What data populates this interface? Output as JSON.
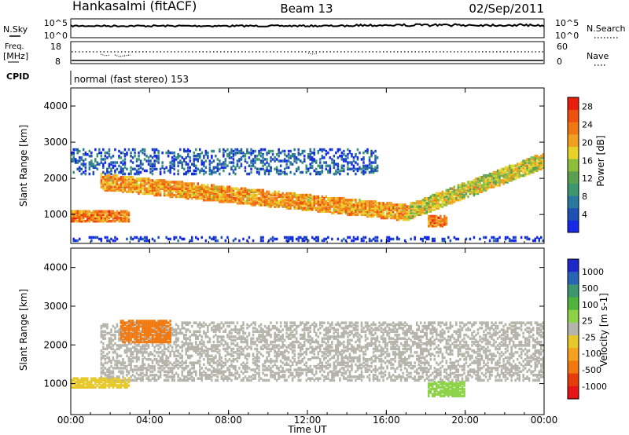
{
  "header": {
    "station": "Hankasalmi (fitACF)",
    "beam": "Beam 13",
    "date": "02/Sep/2011"
  },
  "noise_panel": {
    "left_label": "N.Sky",
    "right_label": "N.Search",
    "left_ticks": [
      "10^5",
      "10^0"
    ],
    "right_ticks": [
      "10^5",
      "10^0"
    ]
  },
  "freq_panel": {
    "left_label_line1": "Freq.",
    "left_label_line2": "[MHz]",
    "right_label": "Nave",
    "left_ticks": [
      "18",
      "8"
    ],
    "right_ticks": [
      "60",
      "0"
    ]
  },
  "cpid": {
    "label": "CPID",
    "text": "normal (fast stereo) 153"
  },
  "x_axis": {
    "label": "Time UT",
    "ticks": [
      "00:00",
      "04:00",
      "08:00",
      "12:00",
      "16:00",
      "20:00",
      "00:00"
    ]
  },
  "colors": {
    "power": [
      "#1428e6",
      "#1e50b4",
      "#2878a0",
      "#3c966e",
      "#5aa050",
      "#8cbe3c",
      "#e6d228",
      "#f0a01e",
      "#f07814",
      "#f0500f",
      "#e61e0a"
    ],
    "velocity": [
      "#1e28c8",
      "#2864b4",
      "#3c966e",
      "#50b43c",
      "#8cd246",
      "#b4b4aa",
      "#e6c828",
      "#f5a01e",
      "#f0780f",
      "#e63c0a",
      "#e61414"
    ]
  },
  "chart_data": [
    {
      "type": "heatmap",
      "title": "",
      "xlabel": "Time UT",
      "ylabel": "Slant Range [km]",
      "xlim": [
        "00:00",
        "24:00"
      ],
      "ylim": [
        200,
        4500
      ],
      "yticks": [
        1000,
        2000,
        3000,
        4000
      ],
      "colorbar": {
        "label": "Power [dB]",
        "ticks": [
          4,
          8,
          12,
          16,
          20,
          24,
          28
        ],
        "range": [
          0,
          30
        ]
      },
      "features": [
        {
          "label": "low-range strong echo band",
          "time_start_h": 0.0,
          "time_end_h": 3.0,
          "range_km": [
            800,
            1100
          ],
          "power_db": 28
        },
        {
          "label": "main descending band",
          "time_start_h": 1.5,
          "time_end_h": 17.0,
          "range_km_start": 1900,
          "range_km_end": 1050,
          "power_db": 26
        },
        {
          "label": "rising band",
          "time_start_h": 17.0,
          "time_end_h": 24.0,
          "range_km_start": 1050,
          "range_km_end": 2500,
          "power_db": 22
        },
        {
          "label": "upper patchy band",
          "time_start_h": 0.0,
          "time_end_h": 15.5,
          "range_km": [
            2100,
            2800
          ],
          "power_db": 10
        },
        {
          "label": "evening high-power blob",
          "time_start_h": 18.0,
          "time_end_h": 19.0,
          "range_km": [
            650,
            950
          ],
          "power_db": 28
        },
        {
          "label": "near-range clutter",
          "time_start_h": 0.0,
          "time_end_h": 24.0,
          "range_km": [
            250,
            400
          ],
          "power_db": 6
        }
      ]
    },
    {
      "type": "heatmap",
      "title": "",
      "xlabel": "Time UT",
      "ylabel": "Slant Range [km]",
      "xlim": [
        "00:00",
        "24:00"
      ],
      "ylim": [
        200,
        4500
      ],
      "yticks": [
        1000,
        2000,
        3000,
        4000
      ],
      "colorbar": {
        "label": "Velocity [m s-1]",
        "ticks": [
          1000,
          500,
          100,
          25,
          -25,
          -100,
          -500,
          -1000
        ]
      },
      "features": [
        {
          "label": "ground scatter (near zero velocity)",
          "time_start_h": 1.5,
          "time_end_h": 24.0,
          "range_km": [
            1050,
            2600
          ],
          "velocity_ms": 0
        },
        {
          "label": "negative velocity patch",
          "time_start_h": 2.5,
          "time_end_h": 5.0,
          "range_km": [
            2050,
            2650
          ],
          "velocity_ms": -500
        },
        {
          "label": "negative velocity low-range band",
          "time_start_h": 0.0,
          "time_end_h": 3.0,
          "range_km": [
            900,
            1150
          ],
          "velocity_ms": -100
        },
        {
          "label": "positive velocity patch",
          "time_start_h": 18.0,
          "time_end_h": 20.0,
          "range_km": [
            650,
            1050
          ],
          "velocity_ms": 100
        }
      ]
    }
  ]
}
